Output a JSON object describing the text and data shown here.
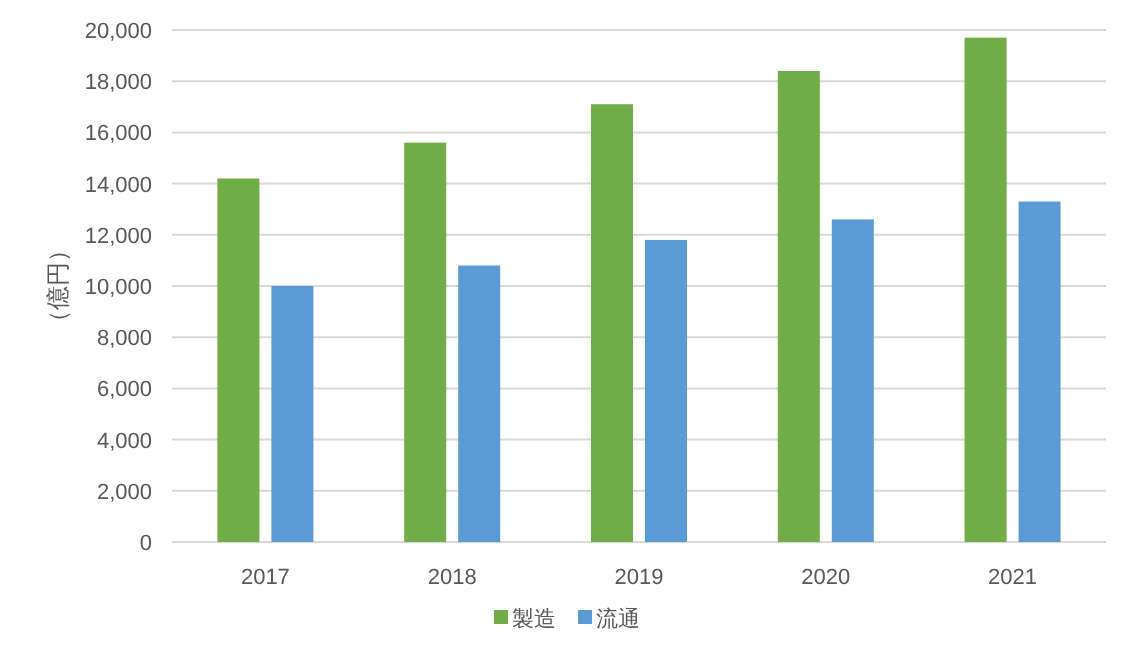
{
  "chart_data": {
    "type": "bar",
    "ylabel": "（億円）",
    "categories": [
      "2017",
      "2018",
      "2019",
      "2020",
      "2021"
    ],
    "series": [
      {
        "name": "製造",
        "color": "#70ad47",
        "values": [
          14200,
          15600,
          17100,
          18400,
          19700
        ]
      },
      {
        "name": "流通",
        "color": "#5b9bd5",
        "values": [
          10000,
          10800,
          11800,
          12600,
          13300
        ]
      }
    ],
    "ylim": [
      0,
      20000
    ],
    "yticks": [
      0,
      {
        "value": 2000,
        "label": "2,000"
      },
      {
        "value": 4000,
        "label": "4,000"
      },
      {
        "value": 6000,
        "label": "6,000"
      },
      {
        "value": 8000,
        "label": "8,000"
      },
      {
        "value": 10000,
        "label": "10,000"
      },
      {
        "value": 12000,
        "label": "12,000"
      },
      {
        "value": 14000,
        "label": "14,000"
      },
      {
        "value": 16000,
        "label": "16,000"
      },
      {
        "value": 18000,
        "label": "18,000"
      },
      {
        "value": 20000,
        "label": "20,000"
      }
    ],
    "grid": "y",
    "legend": "bottom"
  }
}
